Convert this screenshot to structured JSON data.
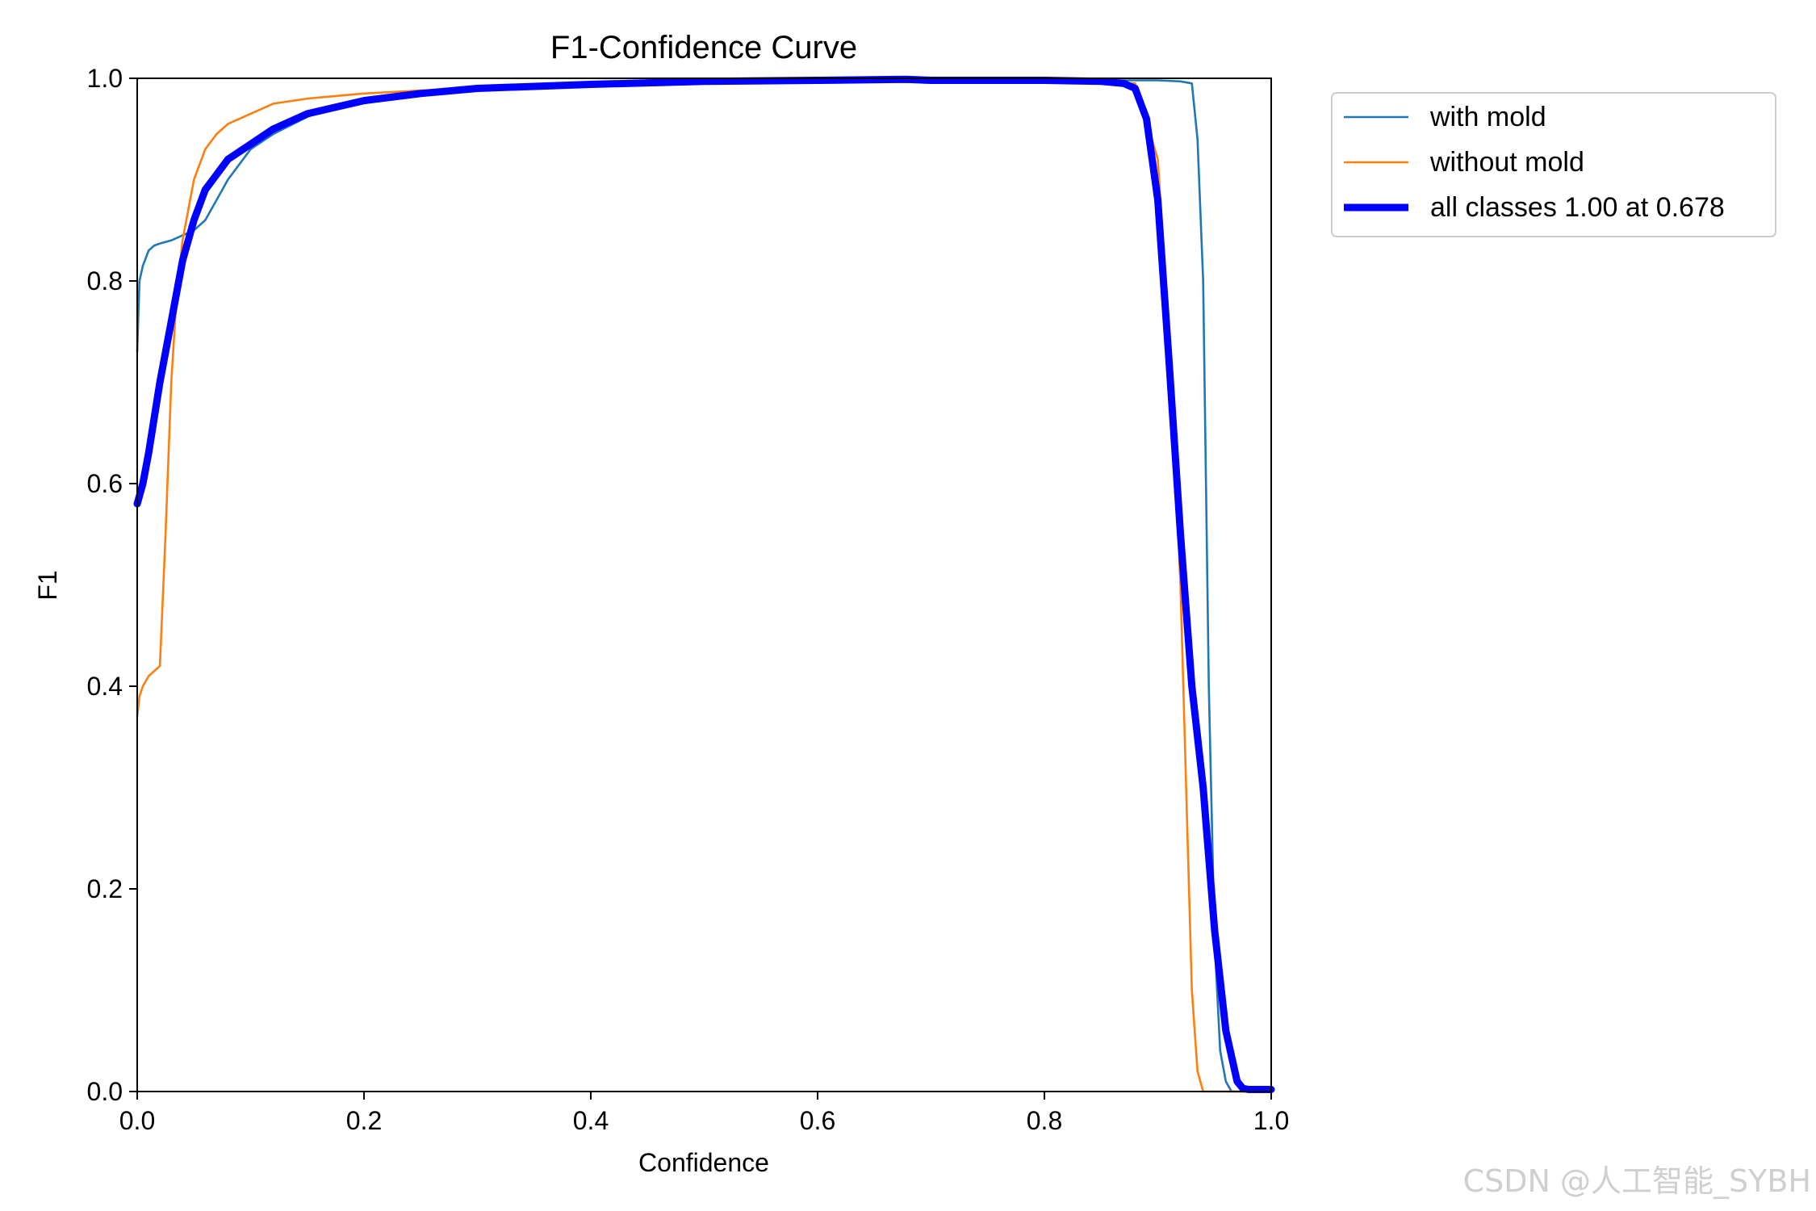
{
  "chart_data": {
    "type": "line",
    "title": "F1-Confidence Curve",
    "xlabel": "Confidence",
    "ylabel": "F1",
    "xlim": [
      0.0,
      1.0
    ],
    "ylim": [
      0.0,
      1.0
    ],
    "xticks": [
      "0.0",
      "0.2",
      "0.4",
      "0.6",
      "0.8",
      "1.0"
    ],
    "yticks": [
      "0.0",
      "0.2",
      "0.4",
      "0.6",
      "0.8",
      "1.0"
    ],
    "grid": false,
    "legend_position": "outside-top-right",
    "series": [
      {
        "name": "with mold",
        "color": "#1f77b4",
        "line": "thin",
        "x": [
          0.0,
          0.002,
          0.005,
          0.01,
          0.015,
          0.02,
          0.03,
          0.04,
          0.05,
          0.06,
          0.07,
          0.08,
          0.1,
          0.12,
          0.15,
          0.18,
          0.21,
          0.25,
          0.3,
          0.4,
          0.5,
          0.6,
          0.7,
          0.8,
          0.9,
          0.92,
          0.93,
          0.935,
          0.94,
          0.945,
          0.95,
          0.955,
          0.96,
          0.965,
          0.97,
          1.0
        ],
        "y": [
          0.73,
          0.8,
          0.815,
          0.83,
          0.835,
          0.837,
          0.84,
          0.845,
          0.85,
          0.86,
          0.88,
          0.9,
          0.93,
          0.945,
          0.962,
          0.975,
          0.98,
          0.987,
          0.99,
          0.995,
          0.997,
          0.998,
          0.998,
          0.998,
          0.998,
          0.997,
          0.995,
          0.94,
          0.8,
          0.4,
          0.15,
          0.04,
          0.01,
          0.0,
          0.0,
          0.0
        ]
      },
      {
        "name": "without mold",
        "color": "#ff7f0e",
        "line": "thin",
        "x": [
          0.0,
          0.002,
          0.005,
          0.01,
          0.015,
          0.02,
          0.025,
          0.03,
          0.035,
          0.04,
          0.045,
          0.05,
          0.06,
          0.07,
          0.08,
          0.09,
          0.1,
          0.12,
          0.15,
          0.2,
          0.25,
          0.3,
          0.4,
          0.5,
          0.6,
          0.7,
          0.8,
          0.88,
          0.9,
          0.91,
          0.92,
          0.925,
          0.93,
          0.935,
          0.94,
          0.945,
          0.95,
          1.0
        ],
        "y": [
          0.37,
          0.39,
          0.4,
          0.41,
          0.415,
          0.42,
          0.55,
          0.7,
          0.79,
          0.84,
          0.87,
          0.9,
          0.93,
          0.945,
          0.955,
          0.96,
          0.965,
          0.975,
          0.98,
          0.985,
          0.988,
          0.99,
          0.995,
          0.997,
          0.998,
          0.998,
          0.998,
          0.995,
          0.92,
          0.75,
          0.5,
          0.3,
          0.1,
          0.02,
          0.0,
          0.0,
          0.0,
          0.0
        ]
      },
      {
        "name": "all classes 1.00 at 0.678",
        "color": "#0000ff",
        "line": "thick",
        "x": [
          0.0,
          0.005,
          0.01,
          0.02,
          0.03,
          0.04,
          0.05,
          0.06,
          0.07,
          0.08,
          0.1,
          0.12,
          0.15,
          0.2,
          0.25,
          0.3,
          0.4,
          0.5,
          0.6,
          0.678,
          0.7,
          0.8,
          0.85,
          0.87,
          0.88,
          0.89,
          0.9,
          0.91,
          0.92,
          0.93,
          0.94,
          0.95,
          0.96,
          0.97,
          0.975,
          0.98,
          1.0
        ],
        "y": [
          0.58,
          0.6,
          0.63,
          0.7,
          0.76,
          0.82,
          0.86,
          0.89,
          0.905,
          0.92,
          0.935,
          0.95,
          0.965,
          0.978,
          0.985,
          0.99,
          0.994,
          0.997,
          0.998,
          0.999,
          0.998,
          0.998,
          0.997,
          0.995,
          0.99,
          0.96,
          0.88,
          0.72,
          0.55,
          0.4,
          0.3,
          0.16,
          0.06,
          0.01,
          0.003,
          0.002,
          0.002
        ]
      }
    ]
  },
  "watermark": "CSDN @人工智能_SYBH"
}
